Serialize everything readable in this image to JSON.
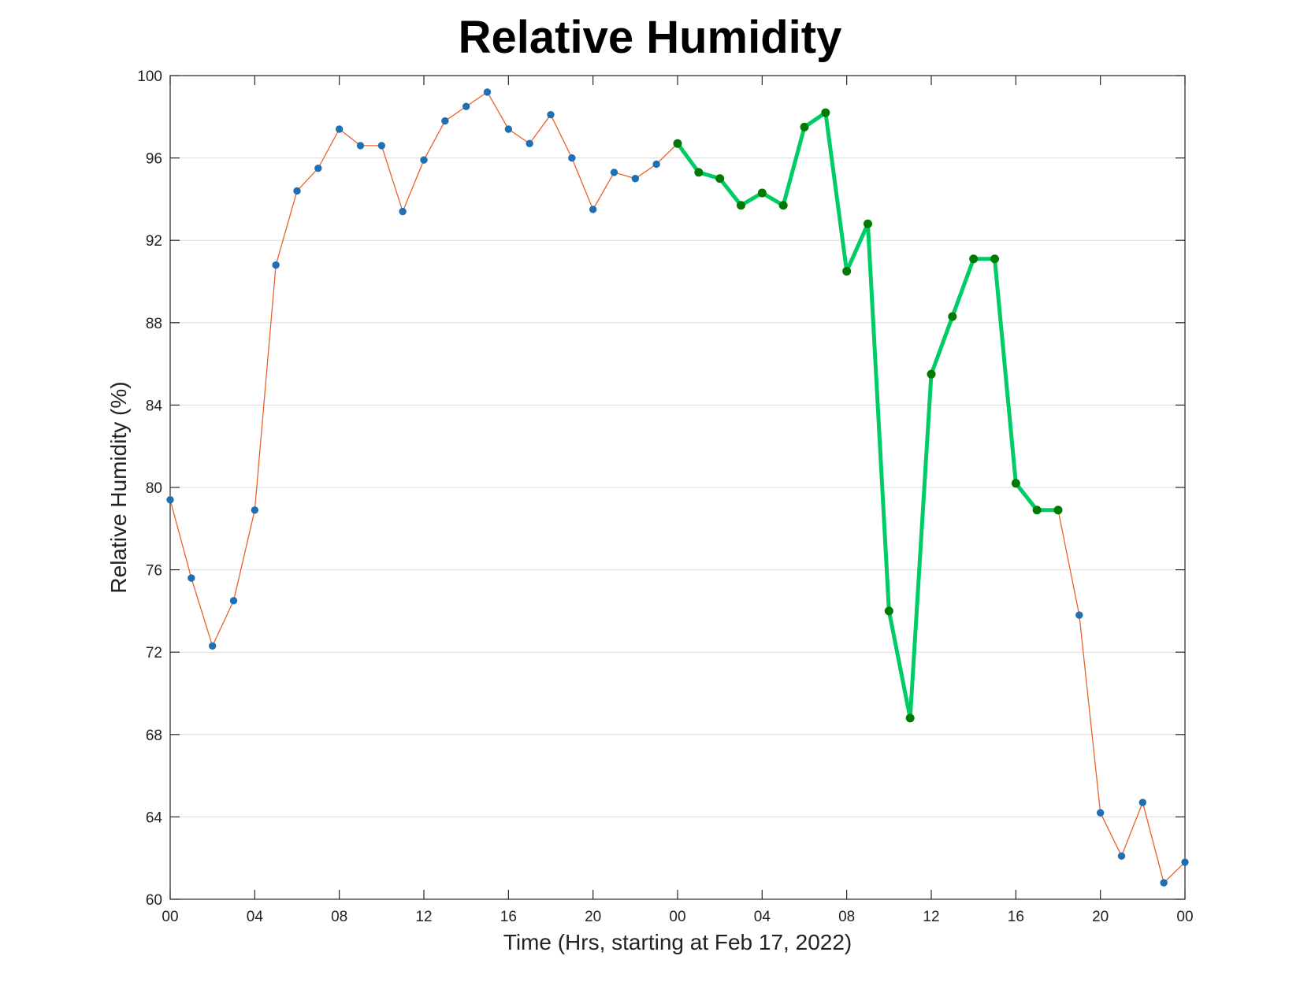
{
  "chart_data": {
    "type": "line",
    "title": "Relative Humidity",
    "xlabel": "Time (Hrs, starting at Feb 17, 2022)",
    "ylabel": "Relative Humidity (%)",
    "xlim": [
      0,
      48
    ],
    "ylim": [
      60,
      100
    ],
    "yticks": [
      60,
      64,
      68,
      72,
      76,
      80,
      84,
      88,
      92,
      96,
      100
    ],
    "xticks": [
      0,
      4,
      8,
      12,
      16,
      20,
      24,
      28,
      32,
      36,
      40,
      44,
      48
    ],
    "xtick_labels": [
      "00",
      "04",
      "08",
      "12",
      "16",
      "20",
      "00",
      "04",
      "08",
      "12",
      "16",
      "20",
      "00"
    ],
    "grid": "horizontal",
    "colors": {
      "full_line": "#e8622c",
      "full_marker": "#1f6fb4",
      "highlight_line": "#00cc66",
      "highlight_marker": "#007a00"
    },
    "series": [
      {
        "x": [
          0,
          1,
          2,
          3,
          4,
          5,
          6,
          7,
          8,
          9,
          10,
          11,
          12,
          13,
          14,
          15,
          16,
          17,
          18,
          19,
          20,
          21,
          22,
          23,
          24,
          25,
          26,
          27,
          28,
          29,
          30,
          31,
          32,
          33,
          34,
          35,
          36,
          37,
          38,
          39,
          40,
          41,
          42,
          43,
          44,
          45,
          46,
          47,
          48
        ],
        "values": [
          79.4,
          75.6,
          72.3,
          74.5,
          78.9,
          90.8,
          94.4,
          95.5,
          97.4,
          96.6,
          96.6,
          93.4,
          95.9,
          97.8,
          98.5,
          99.2,
          97.4,
          96.7,
          98.1,
          96.0,
          93.5,
          95.3,
          95.0,
          95.7,
          96.7,
          95.3,
          95.0,
          93.7,
          94.3,
          93.7,
          97.5,
          98.2,
          90.5,
          92.8,
          74.0,
          68.8,
          85.5,
          88.3,
          91.1,
          91.1,
          80.2,
          78.9,
          78.9,
          73.8,
          64.2,
          62.1,
          64.7,
          60.8,
          61.8
        ]
      },
      {
        "x": [
          24,
          25,
          26,
          27,
          28,
          29,
          30,
          31,
          32,
          33,
          34,
          35,
          36,
          37,
          38,
          39,
          40,
          41,
          42
        ],
        "values": [
          96.7,
          95.3,
          95.0,
          93.7,
          94.3,
          93.7,
          97.5,
          98.2,
          90.5,
          92.8,
          74.0,
          68.8,
          85.5,
          88.3,
          91.1,
          91.1,
          80.2,
          78.9,
          78.9
        ]
      }
    ]
  }
}
